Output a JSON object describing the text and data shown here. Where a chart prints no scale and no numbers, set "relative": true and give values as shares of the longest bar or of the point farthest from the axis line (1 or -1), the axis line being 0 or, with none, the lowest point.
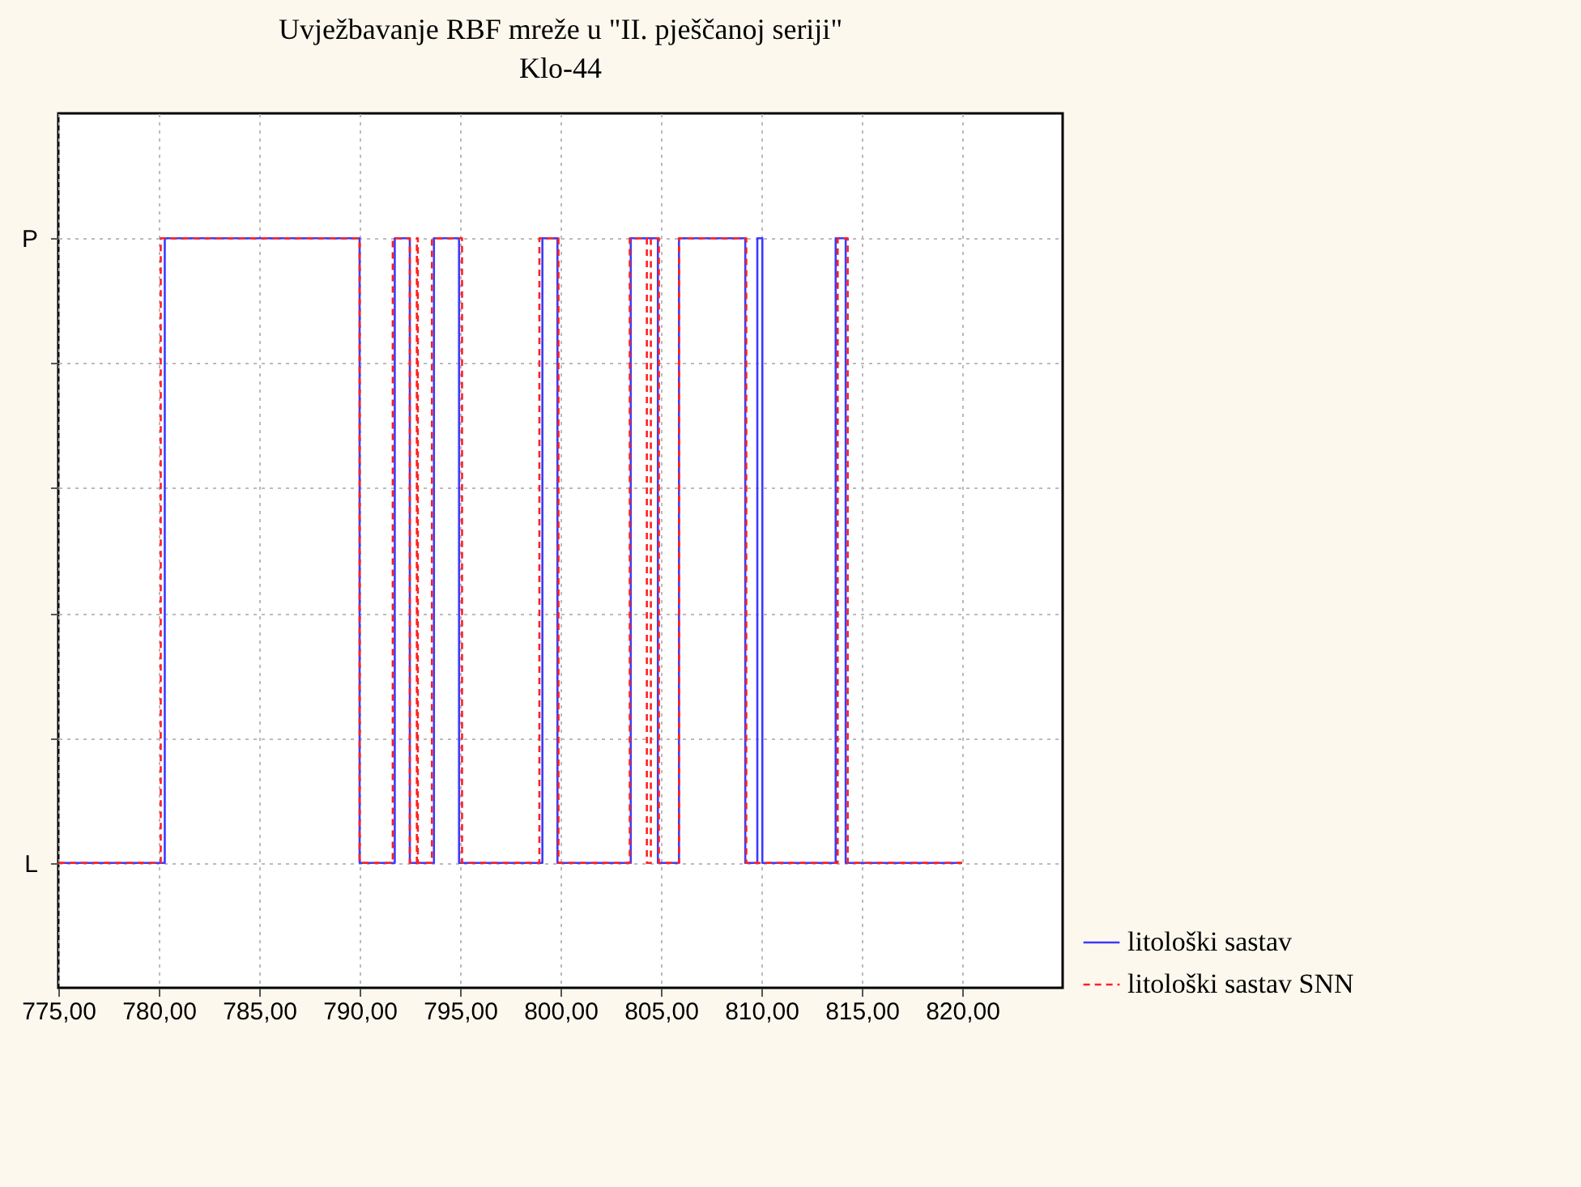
{
  "chart_data": {
    "type": "line",
    "title": "Uvježbavanje RBF mreže u \"II. pješčanoj seriji\"",
    "subtitle": "Klo-44",
    "xlim": [
      775,
      825
    ],
    "xticks": [
      {
        "value": 775,
        "label": "775,00"
      },
      {
        "value": 780,
        "label": "780,00"
      },
      {
        "value": 785,
        "label": "785,00"
      },
      {
        "value": 790,
        "label": "790,00"
      },
      {
        "value": 795,
        "label": "795,00"
      },
      {
        "value": 800,
        "label": "800,00"
      },
      {
        "value": 805,
        "label": "805,00"
      },
      {
        "value": 810,
        "label": "810,00"
      },
      {
        "value": 815,
        "label": "815,00"
      },
      {
        "value": 820,
        "label": "820,00"
      }
    ],
    "relative": true,
    "annotations": [
      "P",
      "L"
    ],
    "grid": true,
    "legend": "bottom right",
    "marker": "none",
    "series": [
      {
        "name": "litološki sastav",
        "color": "#3b3bff",
        "line_style": "solid",
        "x": [
          775,
          780.3,
          780.3,
          790,
          790,
          791.75,
          791.75,
          792.5,
          792.5,
          793.7,
          793.7,
          794.95,
          794.95,
          799.1,
          799.1,
          799.85,
          799.85,
          803.5,
          803.5,
          804.85,
          804.85,
          805.9,
          805.9,
          809.2,
          809.2,
          809.8,
          809.8,
          810.05,
          810.05,
          813.7,
          813.7,
          814.2,
          814.2,
          820
        ],
        "values": [
          0,
          0,
          1,
          1,
          0,
          0,
          1,
          1,
          0,
          0,
          1,
          1,
          0,
          0,
          1,
          1,
          0,
          0,
          1,
          1,
          0,
          0,
          1,
          1,
          0,
          0,
          1,
          1,
          0,
          0,
          1,
          1,
          0,
          0
        ]
      },
      {
        "name": "litološki sastav SNN",
        "color": "#ff2020",
        "line_style": "dashed",
        "x": [
          775,
          780.1,
          780.1,
          790,
          790,
          791.65,
          791.65,
          792.5,
          792.5,
          792.85,
          792.85,
          792.9,
          792.9,
          793.6,
          793.6,
          795.1,
          795.1,
          798.95,
          798.95,
          799.9,
          799.9,
          803.45,
          803.45,
          804.3,
          804.3,
          804.5,
          804.5,
          804.9,
          804.9,
          805.9,
          805.9,
          809.25,
          809.25,
          813.8,
          813.8,
          814.3,
          814.3,
          820
        ],
        "values": [
          0,
          0,
          1,
          1,
          0,
          0,
          1,
          1,
          0,
          0,
          1,
          1,
          0,
          0,
          1,
          1,
          0,
          0,
          1,
          1,
          0,
          0,
          1,
          1,
          0,
          0,
          1,
          1,
          0,
          0,
          1,
          1,
          0,
          0,
          1,
          1,
          0,
          0
        ]
      }
    ]
  }
}
